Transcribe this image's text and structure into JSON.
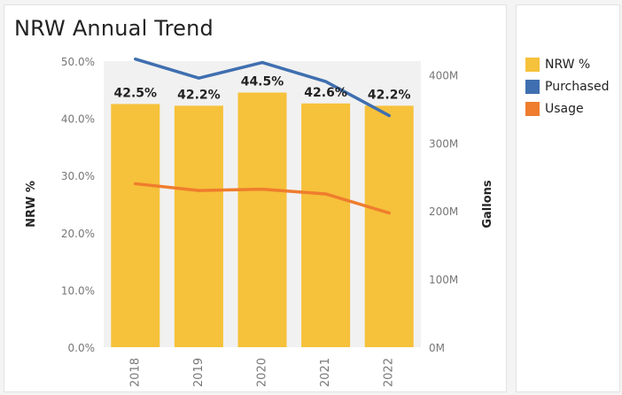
{
  "chart_data": {
    "type": "bar",
    "title": "NRW Annual Trend",
    "categories": [
      "2018",
      "2019",
      "2020",
      "2021",
      "2022"
    ],
    "bars": {
      "name": "NRW %",
      "values": [
        42.5,
        42.2,
        44.5,
        42.6,
        42.2
      ],
      "labels": [
        "42.5%",
        "42.2%",
        "44.5%",
        "42.6%",
        "42.2%"
      ],
      "color": "#f6c13b"
    },
    "lines": [
      {
        "name": "Purchased",
        "values": [
          423,
          395,
          418,
          390,
          340
        ],
        "color": "#3f6fb0"
      },
      {
        "name": "Usage",
        "values": [
          240,
          230,
          232,
          225,
          197
        ],
        "color": "#ef7d2d"
      }
    ],
    "y_left": {
      "label": "NRW %",
      "ylim": [
        0,
        50
      ],
      "ticks": [
        0,
        10,
        20,
        30,
        40,
        50
      ],
      "tick_labels": [
        "0.0%",
        "10.0%",
        "20.0%",
        "30.0%",
        "40.0%",
        "50.0%"
      ]
    },
    "y_right": {
      "label": "Gallons",
      "ylim": [
        0,
        420
      ],
      "ticks": [
        0,
        100,
        200,
        300,
        400
      ],
      "tick_labels": [
        "0M",
        "100M",
        "200M",
        "300M",
        "400M"
      ]
    },
    "grid": false,
    "legend_position": "right"
  },
  "legend": [
    {
      "label": "NRW %",
      "color": "#f6c13b"
    },
    {
      "label": "Purchased",
      "color": "#3f6fb0"
    },
    {
      "label": "Usage",
      "color": "#ef7d2d"
    }
  ]
}
